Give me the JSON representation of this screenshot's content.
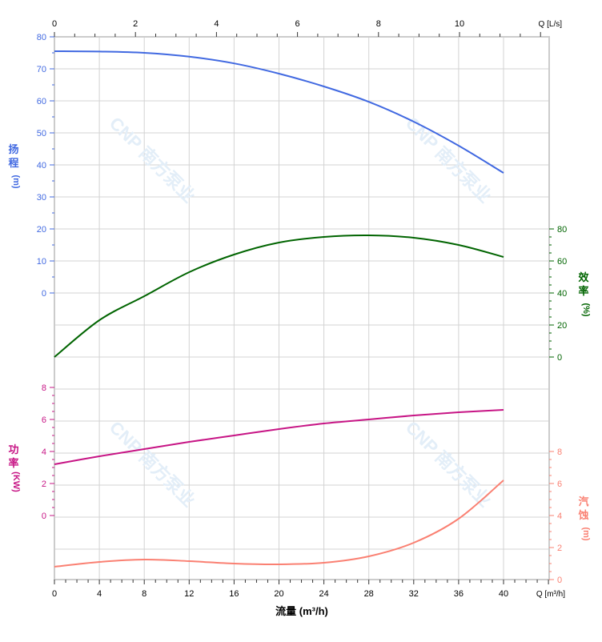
{
  "watermark": "CNP 南方泵业",
  "colors": {
    "head": "#4169e1",
    "eff": "#006400",
    "power": "#c71585",
    "npsh": "#fa8072",
    "grid": "#d3d3d3",
    "axis": "#cccccc"
  },
  "chart_data": {
    "type": "line",
    "x_bottom": {
      "label": "流量 (m³/h)",
      "unit_label": "Q [m³/h]",
      "range": [
        0,
        44
      ],
      "ticks": [
        0,
        4,
        8,
        12,
        16,
        20,
        24,
        28,
        32,
        36,
        40
      ]
    },
    "x_top": {
      "unit_label": "Q [L/s]",
      "range": [
        0,
        12.22
      ],
      "ticks": [
        0,
        2,
        4,
        6,
        8,
        10
      ]
    },
    "x": [
      0,
      4,
      8,
      12,
      16,
      20,
      24,
      28,
      32,
      36,
      40
    ],
    "series": [
      {
        "name": "扬程",
        "unit": "(m)",
        "key": "head",
        "ylim": [
          0,
          80
        ],
        "ticks": [
          0,
          10,
          20,
          30,
          40,
          50,
          60,
          70,
          80
        ],
        "values": [
          75.5,
          75.4,
          75.0,
          73.8,
          71.7,
          68.5,
          64.5,
          59.7,
          53.5,
          46.0,
          37.5
        ]
      },
      {
        "name": "效率",
        "unit": "(%)",
        "key": "eff",
        "ylim": [
          0,
          80
        ],
        "ticks": [
          0,
          20,
          40,
          60,
          80
        ],
        "values": [
          0,
          23,
          38,
          53,
          64,
          71.5,
          75,
          76,
          74.5,
          70,
          62.5
        ]
      },
      {
        "name": "功率",
        "unit": "(KW)",
        "key": "power",
        "ylim": [
          0,
          8
        ],
        "ticks": [
          0,
          2,
          4,
          6,
          8
        ],
        "values": [
          3.2,
          3.7,
          4.15,
          4.6,
          5.0,
          5.4,
          5.75,
          6.0,
          6.25,
          6.45,
          6.6
        ]
      },
      {
        "name": "汽蚀",
        "unit": "(m)",
        "key": "npsh",
        "ylim": [
          0,
          8
        ],
        "ticks": [
          0,
          2,
          4,
          6,
          8
        ],
        "values": [
          0.8,
          1.1,
          1.25,
          1.15,
          1.0,
          0.95,
          1.05,
          1.45,
          2.3,
          3.8,
          6.2
        ]
      }
    ]
  }
}
